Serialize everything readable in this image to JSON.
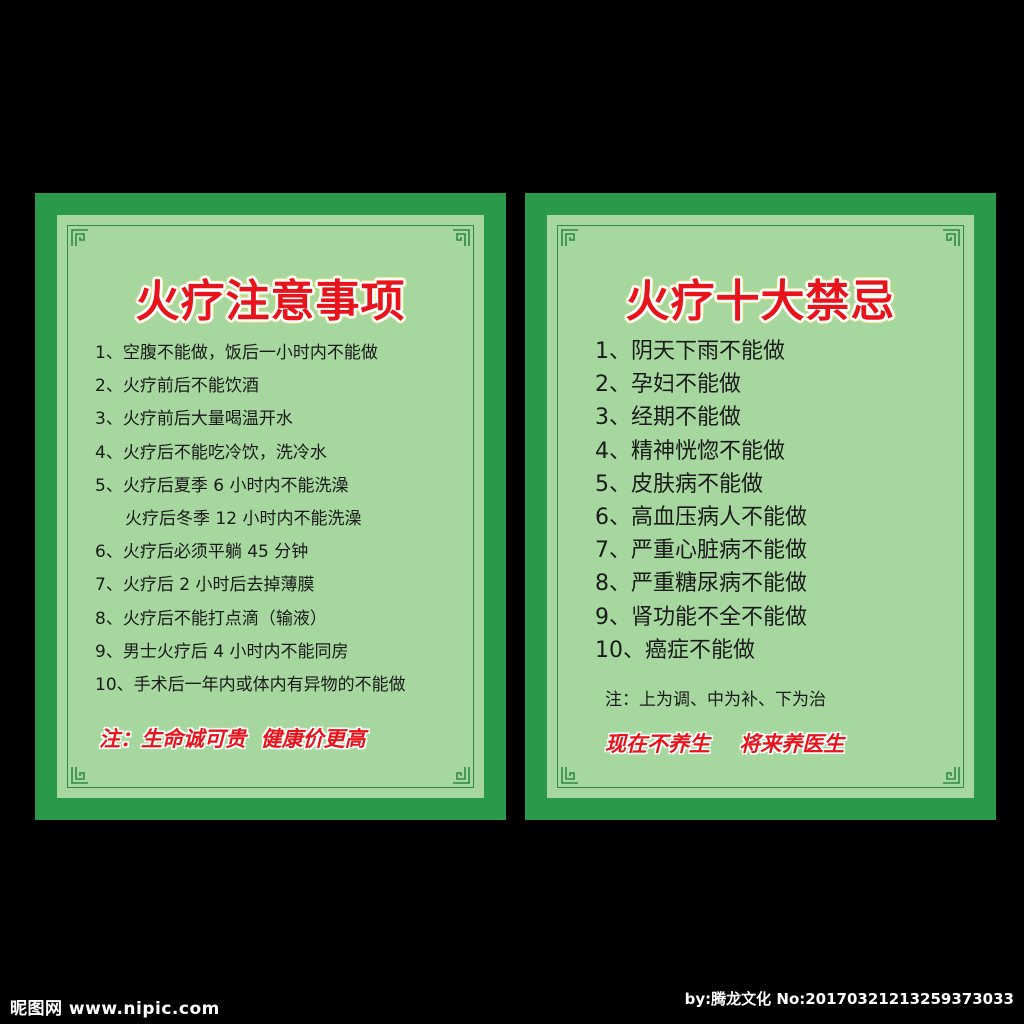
{
  "left_board": {
    "title": "火疗注意事项",
    "items": [
      "1、空腹不能做，饭后一小时内不能做",
      "2、火疗前后不能饮酒",
      "3、火疗前后大量喝温开水",
      "4、火疗后不能吃冷饮，洗冷水",
      "5、火疗后夏季 6 小时内不能洗澡",
      "火疗后冬季 12 小时内不能洗澡",
      "6、火疗后必须平躺 45 分钟",
      "7、火疗后 2 小时后去掉薄膜",
      "8、火疗后不能打点滴（输液）",
      "9、男士火疗后 4 小时内不能同房",
      "10、手术后一年内或体内有异物的不能做"
    ],
    "note": "注：生命诚可贵  健康价更高"
  },
  "right_board": {
    "title": "火疗十大禁忌",
    "items": [
      "1、阴天下雨不能做",
      "2、孕妇不能做",
      "3、经期不能做",
      "4、精神恍惚不能做",
      "5、皮肤病不能做",
      "6、高血压病人不能做",
      "7、严重心脏病不能做",
      "8、严重糖尿病不能做",
      "9、肾功能不全不能做",
      "10、癌症不能做"
    ],
    "note_plain": "注：上为调、中为补、下为治",
    "note": "现在不养生    将来养医生"
  },
  "watermark": {
    "left": "昵图网 www.nipic.com",
    "right": "by:腾龙文化 No:20170321213259373033"
  },
  "colors": {
    "background": "#000000",
    "board_border": "#2a9a4a",
    "panel": "#a6d79f",
    "title_red": "#e8141c"
  }
}
